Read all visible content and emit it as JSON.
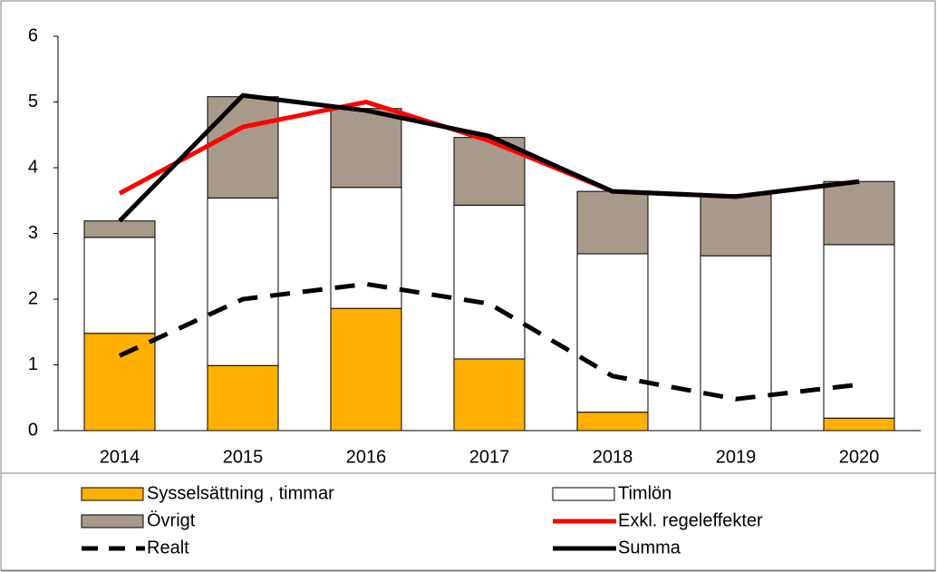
{
  "chart_data": {
    "type": "bar",
    "categories": [
      "2014",
      "2015",
      "2016",
      "2017",
      "2018",
      "2019",
      "2020"
    ],
    "series": [
      {
        "name": "Sysselsättning , timmar",
        "color": "#ffb000",
        "stack": true,
        "values": [
          1.48,
          0.99,
          1.86,
          1.09,
          0.28,
          0.0,
          0.19
        ]
      },
      {
        "name": "Timlön",
        "color": "#ffffff",
        "stack": true,
        "values": [
          1.46,
          2.55,
          1.84,
          2.34,
          2.41,
          2.66,
          2.64
        ]
      },
      {
        "name": "Övrigt",
        "color": "#a89a8a",
        "stack": true,
        "values": [
          0.25,
          1.54,
          1.2,
          1.03,
          0.95,
          0.93,
          0.96
        ]
      },
      {
        "name": "Exkl. regeleffekter",
        "color": "#ff0000",
        "line": "solid",
        "values": [
          3.61,
          4.62,
          5.0,
          4.41,
          3.64,
          3.56,
          3.79
        ]
      },
      {
        "name": "Realt",
        "color": "#000000",
        "line": "dashed",
        "values": [
          1.14,
          2.0,
          2.23,
          1.93,
          0.83,
          0.48,
          0.7
        ]
      },
      {
        "name": "Summa",
        "color": "#000000",
        "line": "solid",
        "values": [
          3.19,
          5.1,
          4.87,
          4.48,
          3.64,
          3.56,
          3.79
        ]
      }
    ],
    "ylim": [
      0,
      6
    ],
    "yticks": [
      0,
      1,
      2,
      3,
      4,
      5,
      6
    ]
  }
}
